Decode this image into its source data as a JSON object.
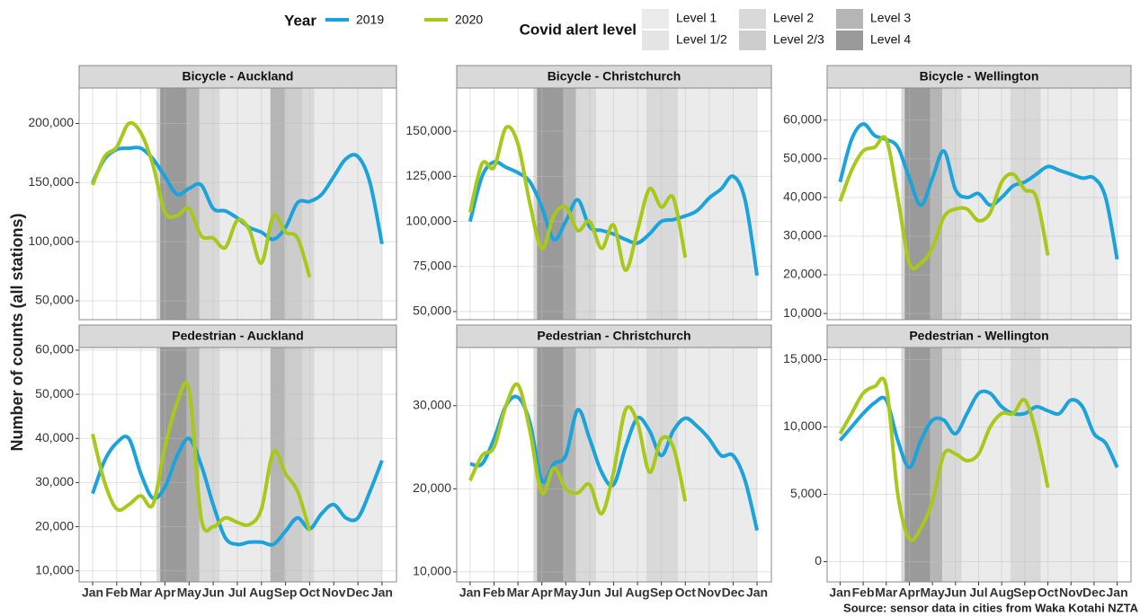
{
  "legend_year_title": "Year",
  "legend_alert_title": "Covid alert level",
  "alert_levels": [
    {
      "name": "Level 1",
      "color": "#ebebeb"
    },
    {
      "name": "Level 1/2",
      "color": "#e4e4e4"
    },
    {
      "name": "Level 2",
      "color": "#d9d9d9"
    },
    {
      "name": "Level 2/3",
      "color": "#cdcdcd"
    },
    {
      "name": "Level 3",
      "color": "#b5b5b5"
    },
    {
      "name": "Level 4",
      "color": "#9a9a9a"
    }
  ],
  "y_label": "Number of counts (all stations)",
  "source": "Source: sensor data in cities from Waka Kotahi NZTA",
  "x": [
    1,
    1.5,
    2,
    2.5,
    3,
    3.5,
    4,
    4.5,
    5,
    5.5,
    6,
    6.5,
    7,
    7.5,
    8,
    8.5,
    9,
    9.5,
    10,
    10.5,
    11,
    11.5,
    12,
    12.5,
    13
  ],
  "xlim": [
    0.44,
    13.6
  ],
  "xticks": [
    {
      "value": 1,
      "label": "Jan"
    },
    {
      "value": 2,
      "label": "Feb"
    },
    {
      "value": 3,
      "label": "Mar"
    },
    {
      "value": 4,
      "label": "Apr"
    },
    {
      "value": 5,
      "label": "May"
    },
    {
      "value": 6,
      "label": "Jun"
    },
    {
      "value": 7,
      "label": "Jul"
    },
    {
      "value": 8,
      "label": "Aug"
    },
    {
      "value": 9,
      "label": "Sep"
    },
    {
      "value": 10,
      "label": "Oct"
    },
    {
      "value": 11,
      "label": "Nov"
    },
    {
      "value": 12,
      "label": "Dec"
    },
    {
      "value": 13,
      "label": "Jan"
    }
  ],
  "chart_data": [
    {
      "type": "line",
      "title": "Bicycle - Auckland",
      "grid": true,
      "ylim": [
        34000,
        230000
      ],
      "yticks": [
        {
          "value": 50000,
          "label": "50,000"
        },
        {
          "value": 100000,
          "label": "100,000"
        },
        {
          "value": 150000,
          "label": "150,000"
        },
        {
          "value": 200000,
          "label": "200,000"
        }
      ],
      "bands": [
        {
          "start": 3.65,
          "end": 3.8,
          "color": "#d9d9d9"
        },
        {
          "start": 3.8,
          "end": 4.9,
          "color": "#9a9a9a"
        },
        {
          "start": 4.9,
          "end": 5.43,
          "color": "#b5b5b5"
        },
        {
          "start": 5.43,
          "end": 6.27,
          "color": "#d9d9d9"
        },
        {
          "start": 6.27,
          "end": 8.37,
          "color": "#ebebeb"
        },
        {
          "start": 8.37,
          "end": 8.97,
          "color": "#b5b5b5"
        },
        {
          "start": 8.97,
          "end": 9.7,
          "color": "#cdcdcd"
        },
        {
          "start": 9.7,
          "end": 10.2,
          "color": "#d9d9d9"
        },
        {
          "start": 10.2,
          "end": 13,
          "color": "#ebebeb"
        }
      ],
      "series": [
        {
          "name": "2019",
          "color": "#1ba3dc",
          "values": [
            150000,
            170000,
            178000,
            179000,
            179000,
            170000,
            155000,
            140000,
            145000,
            148000,
            128000,
            126000,
            120000,
            112000,
            108000,
            102000,
            112000,
            133000,
            134000,
            140000,
            155000,
            170000,
            172000,
            150000,
            98000
          ]
        },
        {
          "name": "2020",
          "color": "#a8c81a",
          "values": [
            148000,
            172000,
            180000,
            200000,
            192000,
            165000,
            125000,
            122000,
            128000,
            105000,
            103000,
            95000,
            118000,
            110000,
            82000,
            122000,
            108000,
            103000,
            70000,
            null,
            null,
            null,
            null,
            null,
            null
          ]
        }
      ]
    },
    {
      "type": "line",
      "title": "Bicycle - Christchurch",
      "grid": true,
      "ylim": [
        45500,
        174000
      ],
      "yticks": [
        {
          "value": 50000,
          "label": "50,000"
        },
        {
          "value": 75000,
          "label": "75,000"
        },
        {
          "value": 100000,
          "label": "100,000"
        },
        {
          "value": 125000,
          "label": "125,000"
        },
        {
          "value": 150000,
          "label": "150,000"
        }
      ],
      "bands": [
        {
          "start": 3.65,
          "end": 3.8,
          "color": "#d9d9d9"
        },
        {
          "start": 3.8,
          "end": 4.9,
          "color": "#9a9a9a"
        },
        {
          "start": 4.9,
          "end": 5.43,
          "color": "#b5b5b5"
        },
        {
          "start": 5.43,
          "end": 6.27,
          "color": "#d9d9d9"
        },
        {
          "start": 6.27,
          "end": 8.37,
          "color": "#ebebeb"
        },
        {
          "start": 8.37,
          "end": 9.7,
          "color": "#d9d9d9"
        },
        {
          "start": 9.7,
          "end": 13,
          "color": "#ebebeb"
        }
      ],
      "series": [
        {
          "name": "2019",
          "color": "#1ba3dc",
          "values": [
            100000,
            125000,
            133000,
            130000,
            127000,
            122000,
            108000,
            90000,
            100000,
            112000,
            97000,
            95000,
            93000,
            90000,
            88000,
            93000,
            100000,
            101000,
            103000,
            106000,
            113000,
            118000,
            125000,
            112000,
            70000
          ]
        },
        {
          "name": "2020",
          "color": "#a8c81a",
          "values": [
            105000,
            132000,
            130000,
            152000,
            143000,
            110000,
            85000,
            103000,
            108000,
            95000,
            100000,
            85000,
            98000,
            73000,
            95000,
            118000,
            108000,
            113000,
            80000,
            null,
            null,
            null,
            null,
            null,
            null
          ]
        }
      ]
    },
    {
      "type": "line",
      "title": "Bicycle - Wellington",
      "grid": true,
      "ylim": [
        8400,
        68300
      ],
      "yticks": [
        {
          "value": 10000,
          "label": "10,000"
        },
        {
          "value": 20000,
          "label": "20,000"
        },
        {
          "value": 30000,
          "label": "30,000"
        },
        {
          "value": 40000,
          "label": "40,000"
        },
        {
          "value": 50000,
          "label": "50,000"
        },
        {
          "value": 60000,
          "label": "60,000"
        }
      ],
      "bands": [
        {
          "start": 3.65,
          "end": 3.8,
          "color": "#d9d9d9"
        },
        {
          "start": 3.8,
          "end": 4.9,
          "color": "#9a9a9a"
        },
        {
          "start": 4.9,
          "end": 5.43,
          "color": "#b5b5b5"
        },
        {
          "start": 5.43,
          "end": 6.27,
          "color": "#d9d9d9"
        },
        {
          "start": 6.27,
          "end": 8.37,
          "color": "#ebebeb"
        },
        {
          "start": 8.37,
          "end": 9.7,
          "color": "#d9d9d9"
        },
        {
          "start": 9.7,
          "end": 13,
          "color": "#ebebeb"
        }
      ],
      "series": [
        {
          "name": "2019",
          "color": "#1ba3dc",
          "values": [
            44000,
            55000,
            59000,
            56000,
            55000,
            53000,
            45000,
            38000,
            45000,
            52000,
            42000,
            40000,
            41000,
            38000,
            40000,
            43000,
            44000,
            46000,
            48000,
            47000,
            46000,
            45000,
            45000,
            40000,
            24000
          ]
        },
        {
          "name": "2020",
          "color": "#a8c81a",
          "values": [
            39000,
            47000,
            52000,
            53000,
            55000,
            40000,
            23000,
            23000,
            27000,
            35000,
            37000,
            37000,
            34000,
            36000,
            44000,
            46000,
            42000,
            40000,
            25000,
            null,
            null,
            null,
            null,
            null,
            null
          ]
        }
      ]
    },
    {
      "type": "line",
      "title": "Pedestrian - Auckland",
      "grid": true,
      "ylim": [
        7500,
        60600
      ],
      "yticks": [
        {
          "value": 10000,
          "label": "10,000"
        },
        {
          "value": 20000,
          "label": "20,000"
        },
        {
          "value": 30000,
          "label": "30,000"
        },
        {
          "value": 40000,
          "label": "40,000"
        },
        {
          "value": 50000,
          "label": "50,000"
        },
        {
          "value": 60000,
          "label": "60,000"
        }
      ],
      "bands": [
        {
          "start": 3.65,
          "end": 3.8,
          "color": "#d9d9d9"
        },
        {
          "start": 3.8,
          "end": 4.9,
          "color": "#9a9a9a"
        },
        {
          "start": 4.9,
          "end": 5.43,
          "color": "#b5b5b5"
        },
        {
          "start": 5.43,
          "end": 6.27,
          "color": "#d9d9d9"
        },
        {
          "start": 6.27,
          "end": 8.37,
          "color": "#ebebeb"
        },
        {
          "start": 8.37,
          "end": 8.97,
          "color": "#b5b5b5"
        },
        {
          "start": 8.97,
          "end": 9.7,
          "color": "#cdcdcd"
        },
        {
          "start": 9.7,
          "end": 10.2,
          "color": "#d9d9d9"
        },
        {
          "start": 10.2,
          "end": 13,
          "color": "#ebebeb"
        }
      ],
      "series": [
        {
          "name": "2019",
          "color": "#1ba3dc",
          "values": [
            27500,
            35000,
            39000,
            40000,
            32000,
            26500,
            29000,
            36000,
            40000,
            34000,
            25000,
            17500,
            16000,
            16500,
            16500,
            16000,
            19000,
            22000,
            19500,
            23000,
            25000,
            22000,
            22000,
            28000,
            35000
          ]
        },
        {
          "name": "2020",
          "color": "#a8c81a",
          "values": [
            41000,
            30000,
            24000,
            25000,
            27000,
            25000,
            38000,
            48000,
            51000,
            22000,
            20000,
            22000,
            21000,
            20500,
            24000,
            37000,
            32000,
            28000,
            19000,
            null,
            null,
            null,
            null,
            null,
            null
          ]
        }
      ]
    },
    {
      "type": "line",
      "title": "Pedestrian - Christchurch",
      "grid": true,
      "ylim": [
        8800,
        37000
      ],
      "yticks": [
        {
          "value": 10000,
          "label": "10,000"
        },
        {
          "value": 20000,
          "label": "20,000"
        },
        {
          "value": 30000,
          "label": "30,000"
        }
      ],
      "bands": [
        {
          "start": 3.65,
          "end": 3.8,
          "color": "#d9d9d9"
        },
        {
          "start": 3.8,
          "end": 4.9,
          "color": "#9a9a9a"
        },
        {
          "start": 4.9,
          "end": 5.43,
          "color": "#b5b5b5"
        },
        {
          "start": 5.43,
          "end": 6.27,
          "color": "#d9d9d9"
        },
        {
          "start": 6.27,
          "end": 8.37,
          "color": "#ebebeb"
        },
        {
          "start": 8.37,
          "end": 9.7,
          "color": "#d9d9d9"
        },
        {
          "start": 9.7,
          "end": 13,
          "color": "#ebebeb"
        }
      ],
      "series": [
        {
          "name": "2019",
          "color": "#1ba3dc",
          "values": [
            23000,
            23000,
            26000,
            30000,
            31000,
            28000,
            21000,
            23000,
            24000,
            29500,
            26000,
            22000,
            20500,
            25000,
            28500,
            27000,
            24000,
            27000,
            28500,
            27500,
            26000,
            24000,
            24000,
            21000,
            15000
          ]
        },
        {
          "name": "2020",
          "color": "#a8c81a",
          "values": [
            21000,
            24000,
            25000,
            30000,
            32500,
            27000,
            19500,
            22500,
            20000,
            19500,
            20500,
            17000,
            22000,
            29500,
            28000,
            22000,
            26000,
            25000,
            18500,
            null,
            null,
            null,
            null,
            null,
            null
          ]
        }
      ]
    },
    {
      "type": "line",
      "title": "Pedestrian - Wellington",
      "grid": true,
      "ylim": [
        -1500,
        15900
      ],
      "yticks": [
        0,
        {
          "value": 5000,
          "label": "5,000"
        },
        {
          "value": 10000,
          "label": "10,000"
        },
        {
          "value": 15000,
          "label": "15,000"
        }
      ],
      "bands": [
        {
          "start": 3.65,
          "end": 3.8,
          "color": "#d9d9d9"
        },
        {
          "start": 3.8,
          "end": 4.9,
          "color": "#9a9a9a"
        },
        {
          "start": 4.9,
          "end": 5.43,
          "color": "#b5b5b5"
        },
        {
          "start": 5.43,
          "end": 6.27,
          "color": "#d9d9d9"
        },
        {
          "start": 6.27,
          "end": 8.37,
          "color": "#ebebeb"
        },
        {
          "start": 8.37,
          "end": 9.7,
          "color": "#d9d9d9"
        },
        {
          "start": 9.7,
          "end": 13,
          "color": "#ebebeb"
        }
      ],
      "series": [
        {
          "name": "2019",
          "color": "#1ba3dc",
          "values": [
            9000,
            10000,
            11000,
            11800,
            12000,
            9000,
            7000,
            9000,
            10500,
            10500,
            9500,
            11000,
            12500,
            12500,
            11500,
            11000,
            11000,
            11500,
            11200,
            11000,
            12000,
            11500,
            9500,
            8800,
            7000
          ]
        },
        {
          "name": "2020",
          "color": "#a8c81a",
          "values": [
            9500,
            11000,
            12500,
            13000,
            13000,
            5000,
            1700,
            2500,
            4500,
            8000,
            8000,
            7500,
            8000,
            10000,
            11000,
            11000,
            12000,
            9500,
            5500,
            null,
            null,
            null,
            null,
            null,
            null
          ]
        }
      ]
    }
  ]
}
